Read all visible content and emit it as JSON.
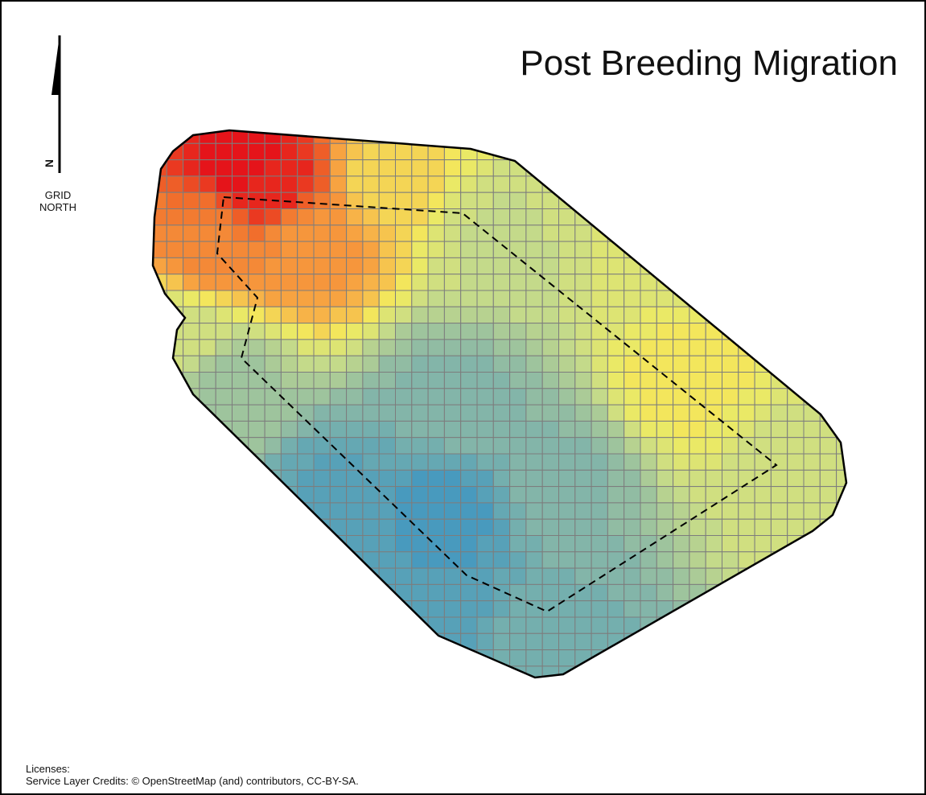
{
  "title": "Post Breeding Migration",
  "north_arrow": {
    "letter": "N",
    "label": [
      "GRID",
      "NORTH"
    ]
  },
  "credits": [
    "Licenses:",
    "Service Layer Credits: © OpenStreetMap (and) contributors, CC-BY-SA."
  ]
}
